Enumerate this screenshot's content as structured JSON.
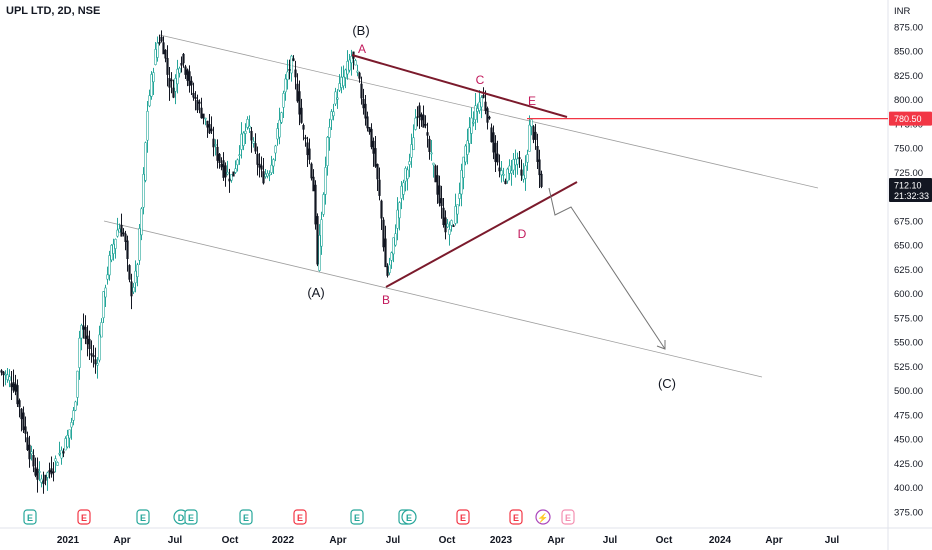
{
  "header": {
    "title": "UPL LTD, 2D, NSE"
  },
  "colors": {
    "up": "#26a69a",
    "down": "#131722",
    "price_line": "#f23645",
    "triangle": "#7b1a2c",
    "label_pink": "#c2185b",
    "channel": "#9e9e9e"
  },
  "chart_data": {
    "type": "candlestick",
    "currency": "INR",
    "ylim": [
      370,
      885
    ],
    "yticks": [
      "875.00",
      "850.00",
      "825.00",
      "800.00",
      "775.00",
      "750.00",
      "725.00",
      "700.00",
      "675.00",
      "650.00",
      "625.00",
      "600.00",
      "575.00",
      "550.00",
      "525.00",
      "500.00",
      "475.00",
      "450.00",
      "425.00",
      "400.00",
      "375.00"
    ],
    "xticks": [
      "2021",
      "Apr",
      "Jul",
      "Oct",
      "2022",
      "Apr",
      "Jul",
      "Oct",
      "2023",
      "Apr",
      "Jul",
      "Oct",
      "2024",
      "Apr",
      "Jul"
    ],
    "price_levels": [
      {
        "value": 780.5,
        "label": "780.50",
        "color": "#f23645"
      },
      {
        "value": 712.1,
        "label": "712.10",
        "sublabel": "21:32:33",
        "color": "#131722"
      }
    ],
    "wave_labels": [
      {
        "text": "(B)",
        "price": 870
      },
      {
        "text": "(A)",
        "price": 597
      },
      {
        "text": "(C)",
        "price": 505
      },
      {
        "text": "A",
        "price": 850
      },
      {
        "text": "B",
        "price": 595
      },
      {
        "text": "C",
        "price": 817
      },
      {
        "text": "D",
        "price": 685
      },
      {
        "text": "E",
        "price": 793
      }
    ],
    "events": [
      "E",
      "E",
      "E",
      "D",
      "E",
      "E",
      "E",
      "E",
      "E",
      "E",
      "E",
      "E"
    ]
  }
}
